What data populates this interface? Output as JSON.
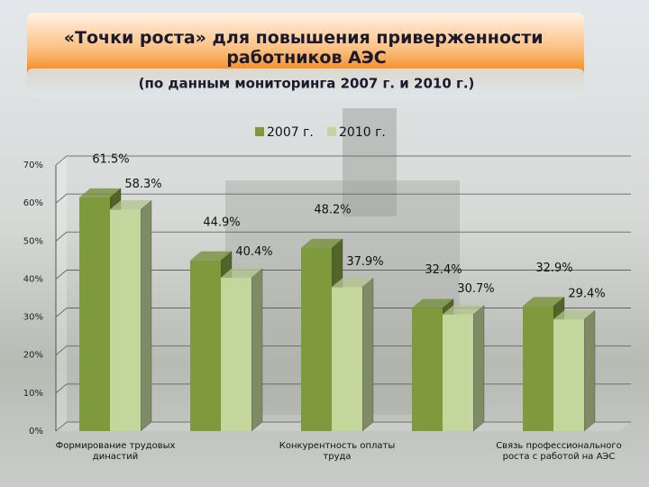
{
  "chart_data": {
    "type": "bar3d",
    "title": "«Точки роста» для повышения приверженности работников АЭС",
    "subtitle": "(по данным мониторинга 2007 г. и 2010 г.)",
    "categories": [
      "Формирование трудовых династий",
      null,
      "Конкурентность оплаты труда",
      null,
      "Связь профессионального роста с работой на АЭС"
    ],
    "series": [
      {
        "name": "2007 г.",
        "color": "#7f9a3c",
        "values": [
          61.5,
          44.9,
          48.2,
          32.4,
          32.9
        ],
        "value_labels": [
          "61.5%",
          "44.9%",
          "48.2%",
          "32.4%",
          "32.9%"
        ]
      },
      {
        "name": "2010 г.",
        "color": "#c3d69b",
        "values": [
          58.3,
          40.4,
          37.9,
          30.7,
          29.4
        ],
        "value_labels": [
          "58.3%",
          "40.4%",
          "37.9%",
          "30.7%",
          "29.4%"
        ]
      }
    ],
    "ylim": [
      0,
      70
    ],
    "yticks": [
      {
        "value": 0,
        "label": "0%"
      },
      {
        "value": 10,
        "label": "10%"
      },
      {
        "value": 20,
        "label": "20%"
      },
      {
        "value": 30,
        "label": "30%"
      },
      {
        "value": 40,
        "label": "40%"
      },
      {
        "value": 50,
        "label": "50%"
      },
      {
        "value": 60,
        "label": "60%"
      },
      {
        "value": 70,
        "label": "70%"
      }
    ],
    "grid": true,
    "legend": "top"
  }
}
